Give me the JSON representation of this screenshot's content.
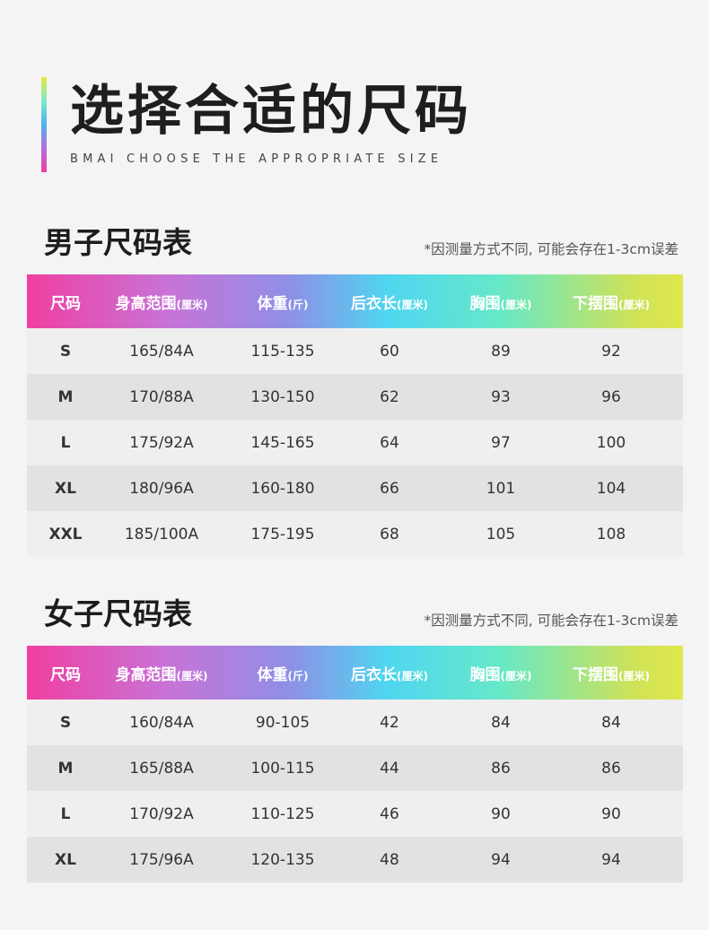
{
  "header": {
    "title": "选择合适的尺码",
    "subtitle": "BMAI CHOOSE THE APPROPRIATE SIZE"
  },
  "columns": [
    {
      "label": "尺码",
      "unit": ""
    },
    {
      "label": "身高范围",
      "unit": "(厘米)"
    },
    {
      "label": "体重",
      "unit": "(斤)"
    },
    {
      "label": "后衣长",
      "unit": "(厘米)"
    },
    {
      "label": "胸围",
      "unit": "(厘米)"
    },
    {
      "label": "下摆围",
      "unit": "(厘米)"
    }
  ],
  "men": {
    "title": "男子尺码表",
    "note": "*因测量方式不同, 可能会存在1-3cm误差",
    "rows": [
      [
        "S",
        "165/84A",
        "115-135",
        "60",
        "89",
        "92"
      ],
      [
        "M",
        "170/88A",
        "130-150",
        "62",
        "93",
        "96"
      ],
      [
        "L",
        "175/92A",
        "145-165",
        "64",
        "97",
        "100"
      ],
      [
        "XL",
        "180/96A",
        "160-180",
        "66",
        "101",
        "104"
      ],
      [
        "XXL",
        "185/100A",
        "175-195",
        "68",
        "105",
        "108"
      ]
    ]
  },
  "women": {
    "title": "女子尺码表",
    "note": "*因测量方式不同, 可能会存在1-3cm误差",
    "rows": [
      [
        "S",
        "160/84A",
        "90-105",
        "42",
        "84",
        "84"
      ],
      [
        "M",
        "165/88A",
        "100-115",
        "44",
        "86",
        "86"
      ],
      [
        "L",
        "170/92A",
        "110-125",
        "46",
        "90",
        "90"
      ],
      [
        "XL",
        "175/96A",
        "120-135",
        "48",
        "94",
        "94"
      ]
    ]
  }
}
